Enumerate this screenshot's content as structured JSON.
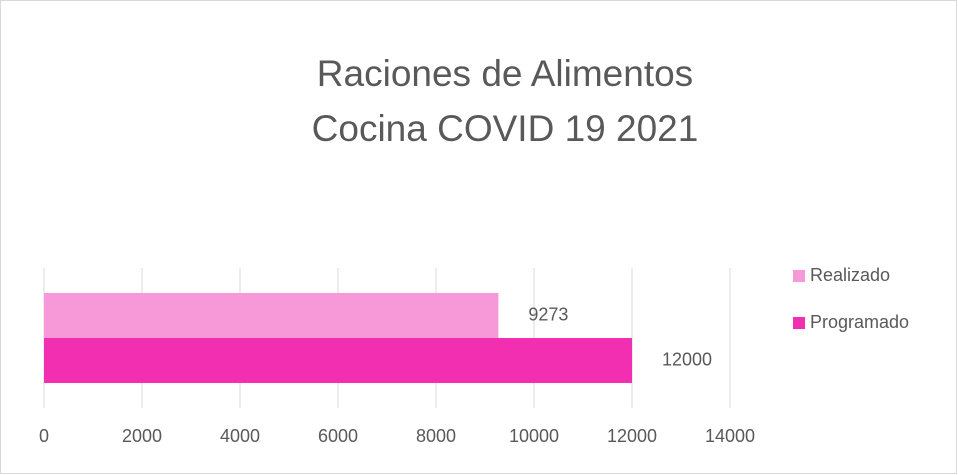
{
  "chart_data": {
    "type": "hbar",
    "title": [
      "Raciones de Alimentos",
      "Cocina COVID 19 2021"
    ],
    "categories": [
      null
    ],
    "series": [
      {
        "name": "Realizado",
        "color": "#f799d8",
        "values": [
          9273
        ]
      },
      {
        "name": "Programado",
        "color": "#f12fb0",
        "values": [
          12000
        ]
      }
    ],
    "xlim": [
      0,
      14000
    ],
    "xticks": [
      0,
      2000,
      4000,
      6000,
      8000,
      10000,
      12000,
      14000
    ],
    "grid": true,
    "legend": "right"
  }
}
